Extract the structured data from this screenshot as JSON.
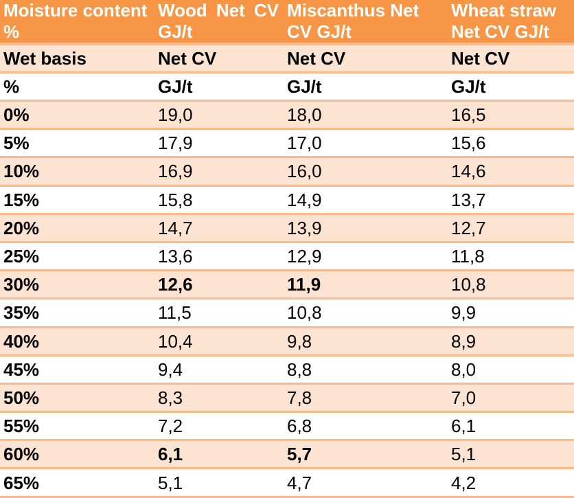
{
  "header": [
    "Moisture content %",
    "Wood Net CV GJ/t",
    "Miscanthus Net CV GJ/t",
    "Wheat straw Net CV GJ/t"
  ],
  "subheader1": [
    "Wet basis",
    "Net CV",
    "Net CV",
    "Net CV"
  ],
  "subheader2": [
    "%",
    "GJ/t",
    "GJ/t",
    "GJ/t"
  ],
  "rows": [
    {
      "cells": [
        "0%",
        "19,0",
        "18,0",
        "16,5"
      ],
      "bold": []
    },
    {
      "cells": [
        "5%",
        "17,9",
        "17,0",
        "15,6"
      ],
      "bold": []
    },
    {
      "cells": [
        "10%",
        "16,9",
        "16,0",
        "14,6"
      ],
      "bold": []
    },
    {
      "cells": [
        "15%",
        "15,8",
        "14,9",
        "13,7"
      ],
      "bold": []
    },
    {
      "cells": [
        "20%",
        "14,7",
        "13,9",
        "12,7"
      ],
      "bold": []
    },
    {
      "cells": [
        "25%",
        "13,6",
        "12,9",
        "11,8"
      ],
      "bold": []
    },
    {
      "cells": [
        "30%",
        "12,6",
        "11,9",
        "10,8"
      ],
      "bold": [
        1,
        2
      ]
    },
    {
      "cells": [
        "35%",
        "11,5",
        "10,8",
        "9,9"
      ],
      "bold": []
    },
    {
      "cells": [
        "40%",
        "10,4",
        "9,8",
        "8,9"
      ],
      "bold": []
    },
    {
      "cells": [
        "45%",
        "9,4",
        "8,8",
        "8,0"
      ],
      "bold": []
    },
    {
      "cells": [
        "50%",
        "8,3",
        "7,8",
        "7,0"
      ],
      "bold": []
    },
    {
      "cells": [
        "55%",
        "7,2",
        "6,8",
        "6,1"
      ],
      "bold": []
    },
    {
      "cells": [
        "60%",
        "6,1",
        "5,7",
        "5,1"
      ],
      "bold": [
        1,
        2
      ]
    },
    {
      "cells": [
        "65%",
        "5,1",
        "4,7",
        "4,2"
      ],
      "bold": []
    }
  ],
  "colors": {
    "header": "#F79646",
    "shade": "#FDE4D2",
    "rule": "#F9B98A"
  }
}
